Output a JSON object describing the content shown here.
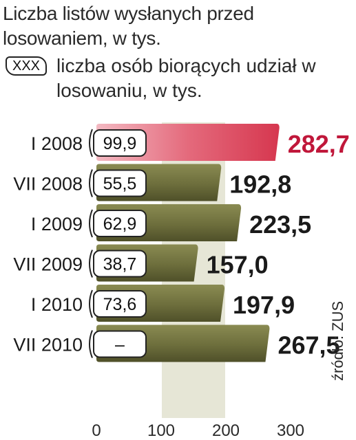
{
  "title": "Liczba listów wysłanych przed losowaniem, w tys.",
  "legend": {
    "swatch_label": "XXX",
    "text": "liczba osób biorących udział w losowaniu, w tys."
  },
  "source": "źródło: ZUS",
  "colors": {
    "highlight_bar": "#d6374f",
    "highlight_text": "#c0173a",
    "bar": "#6d6e3c",
    "value_text": "#1a1a1a",
    "grid_band": "#e6e6d6"
  },
  "chart_data": {
    "type": "bar",
    "orientation": "horizontal",
    "categories": [
      "I 2008",
      "VII 2008",
      "I 2009",
      "VII 2009",
      "I 2010",
      "VII 2010"
    ],
    "values": [
      282.7,
      192.8,
      223.5,
      157.0,
      197.9,
      267.5
    ],
    "value_labels": [
      "282,7",
      "192,8",
      "223,5",
      "157,0",
      "197,9",
      "267,5"
    ],
    "participants_labels": [
      "99,9",
      "55,5",
      "62,9",
      "38,7",
      "73,6",
      "–"
    ],
    "highlight_index": 0,
    "xlim": [
      0,
      300
    ],
    "xticks": [
      0,
      100,
      200,
      300
    ],
    "xtick_labels": [
      "0",
      "100",
      "200",
      "300"
    ],
    "grid": true
  }
}
